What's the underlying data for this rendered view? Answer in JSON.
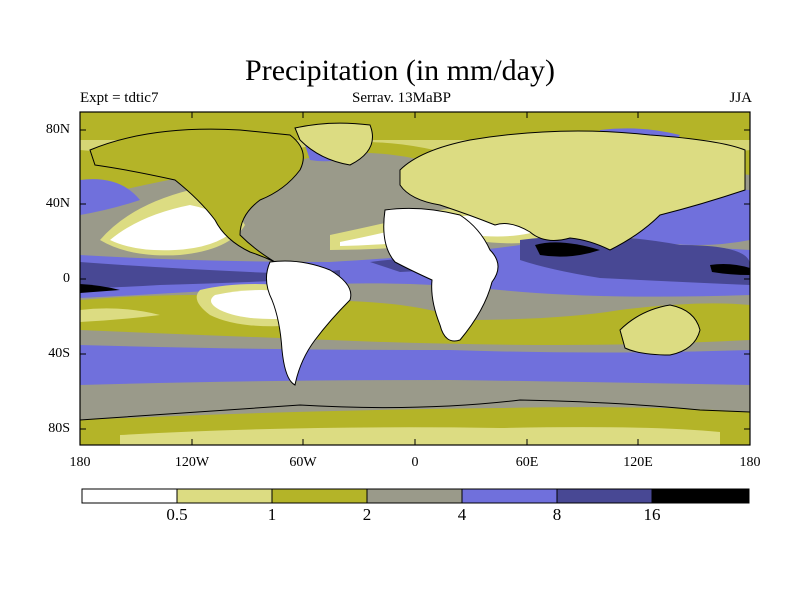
{
  "title": "Precipitation (in mm/day)",
  "experiment_label": "Expt = tdtic7",
  "subtitle": "Serrav.   13MaBP",
  "season": "JJA",
  "y_axis_labels": [
    "80N",
    "40N",
    "0",
    "40S",
    "80S"
  ],
  "x_axis_labels": [
    "180",
    "120W",
    "60W",
    "0",
    "60E",
    "120E",
    "180"
  ],
  "colorbar": {
    "labels": [
      "0.5",
      "1",
      "2",
      "4",
      "8",
      "16"
    ],
    "colors": [
      "#ffffff",
      "#dcdc82",
      "#b4b428",
      "#9a9a8a",
      "#7070dc",
      "#484894",
      "#000000"
    ]
  },
  "colors": {
    "dry": "#ffffff",
    "light": "#dcdc82",
    "olive": "#b4b428",
    "gray": "#9a9a8a",
    "blue": "#7070dc",
    "darkblue": "#484894",
    "black": "#000000"
  }
}
